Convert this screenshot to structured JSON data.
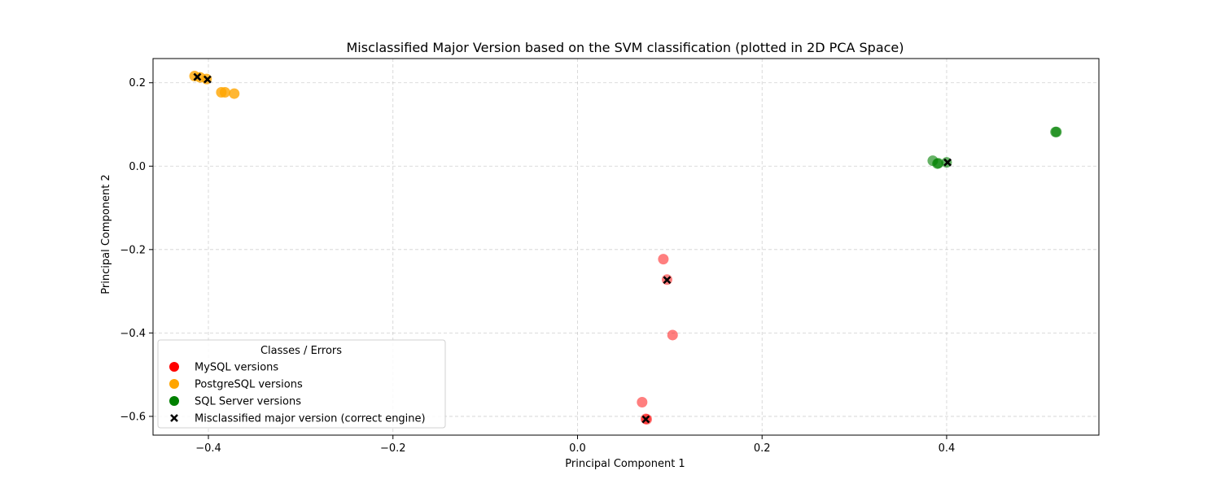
{
  "chart_data": {
    "type": "scatter",
    "title": "Misclassified Major Version based on the SVM classification (plotted in 2D PCA Space)",
    "xlabel": "Principal Component 1",
    "ylabel": "Principal Component 2",
    "xlim": [
      -0.46,
      0.565
    ],
    "ylim": [
      -0.645,
      0.258
    ],
    "xticks": [
      -0.4,
      -0.2,
      0.0,
      0.2,
      0.4
    ],
    "xtick_labels": [
      "−0.4",
      "−0.2",
      "0.0",
      "0.2",
      "0.4"
    ],
    "yticks": [
      -0.6,
      -0.4,
      -0.2,
      0.0,
      0.2
    ],
    "ytick_labels": [
      "−0.6",
      "−0.4",
      "−0.2",
      "0.0",
      "0.2"
    ],
    "grid": true,
    "legend": {
      "title": "Classes / Errors",
      "position": "lower-left",
      "entries": [
        {
          "label": "MySQL versions",
          "marker": "circle",
          "color": "#ff0000"
        },
        {
          "label": "PostgreSQL versions",
          "marker": "circle",
          "color": "#ffa500"
        },
        {
          "label": "SQL Server versions",
          "marker": "circle",
          "color": "#008000"
        },
        {
          "label": "Misclassified major version (correct engine)",
          "marker": "x",
          "color": "#000000"
        }
      ]
    },
    "series": [
      {
        "name": "MySQL versions",
        "color": "#ff0000",
        "opacity": 0.5,
        "points": [
          {
            "x": 0.093,
            "y": -0.223
          },
          {
            "x": 0.097,
            "y": -0.272
          },
          {
            "x": 0.103,
            "y": -0.405
          },
          {
            "x": 0.07,
            "y": -0.566
          },
          {
            "x": 0.074,
            "y": -0.606
          },
          {
            "x": 0.075,
            "y": -0.607
          }
        ]
      },
      {
        "name": "PostgreSQL versions",
        "color": "#ffa500",
        "opacity": 0.8,
        "points": [
          {
            "x": -0.415,
            "y": 0.216
          },
          {
            "x": -0.409,
            "y": 0.213
          },
          {
            "x": -0.402,
            "y": 0.209
          },
          {
            "x": -0.386,
            "y": 0.177
          },
          {
            "x": -0.382,
            "y": 0.177
          },
          {
            "x": -0.372,
            "y": 0.174
          }
        ]
      },
      {
        "name": "SQL Server versions",
        "color": "#008000",
        "opacity": 0.6,
        "points": [
          {
            "x": 0.385,
            "y": 0.013
          },
          {
            "x": 0.39,
            "y": 0.006
          },
          {
            "x": 0.391,
            "y": 0.007
          },
          {
            "x": 0.4,
            "y": 0.009
          },
          {
            "x": 0.518,
            "y": 0.082
          },
          {
            "x": 0.519,
            "y": 0.082
          }
        ]
      },
      {
        "name": "Misclassified major version (correct engine)",
        "marker": "x",
        "color": "#000000",
        "points": [
          {
            "x": -0.412,
            "y": 0.214
          },
          {
            "x": -0.401,
            "y": 0.208
          },
          {
            "x": 0.097,
            "y": -0.273
          },
          {
            "x": 0.074,
            "y": -0.607
          },
          {
            "x": 0.401,
            "y": 0.009
          }
        ]
      }
    ]
  }
}
